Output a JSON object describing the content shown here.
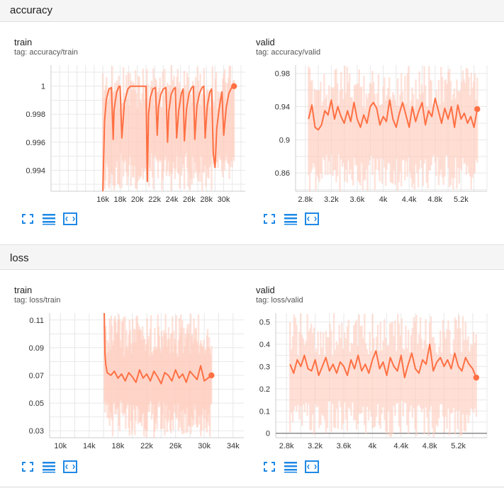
{
  "sections": [
    {
      "title": "accuracy",
      "cards": [
        {
          "title": "train",
          "tag": "tag: accuracy/train"
        },
        {
          "title": "valid",
          "tag": "tag: accuracy/valid"
        }
      ]
    },
    {
      "title": "loss",
      "cards": [
        {
          "title": "train",
          "tag": "tag: loss/train"
        },
        {
          "title": "valid",
          "tag": "tag: loss/valid"
        }
      ]
    }
  ],
  "toolbar_icons": [
    "fit-domain-icon",
    "data-selection-icon",
    "toggle-log-scale-icon"
  ],
  "colors": {
    "line": "#ff7043",
    "band": "#ffccbc",
    "accent_icon": "#1e88e5",
    "grid": "#e8e8e8"
  },
  "chart_data": [
    {
      "type": "line",
      "section": "accuracy",
      "panel": "train",
      "title": "",
      "xlim": [
        10000,
        32500
      ],
      "ylim": [
        0.9925,
        1.0015
      ],
      "xticks": [
        16000,
        18000,
        20000,
        22000,
        24000,
        26000,
        28000,
        30000
      ],
      "xtick_labels": [
        "16k",
        "18k",
        "20k",
        "22k",
        "24k",
        "26k",
        "28k",
        "30k"
      ],
      "yticks": [
        0.994,
        0.996,
        0.998,
        1
      ],
      "ytick_labels": [
        "0.994",
        "0.996",
        "0.998",
        "1"
      ],
      "series": [
        {
          "x": [
            16000,
            16200,
            16400,
            16700,
            17000,
            17200,
            17300,
            17600,
            17900,
            18000,
            18200,
            18500,
            18900,
            19200,
            20000,
            21000,
            21150,
            21300,
            21500,
            21800,
            22100,
            22300,
            22450,
            22700,
            23000,
            23300,
            23500,
            23650,
            23900,
            24200,
            24400,
            24550,
            24800,
            25100,
            25300,
            25450,
            25700,
            26000,
            26300,
            26500,
            26650,
            26900,
            27200,
            27500,
            27700,
            27850,
            28100,
            28400,
            28600,
            28800,
            29000,
            29200,
            29500,
            29800,
            30000,
            30300,
            30600,
            31000,
            31200
          ],
          "y": [
            0.9925,
            0.9975,
            0.999,
            0.9998,
            0.9999,
            0.9962,
            0.9983,
            0.9996,
            1.0,
            1.0,
            0.9963,
            0.9988,
            0.9998,
            1.0,
            1.0,
            1.0,
            0.9932,
            0.998,
            0.9992,
            0.9998,
            0.9999,
            0.9965,
            0.9985,
            0.9994,
            0.9998,
            0.9999,
            0.996,
            0.9982,
            0.9994,
            0.9998,
            0.9999,
            0.9963,
            0.9983,
            0.9995,
            0.9998,
            0.9961,
            0.9984,
            0.9995,
            0.9999,
            1.0,
            0.9962,
            0.9986,
            0.9995,
            0.9999,
            1.0,
            0.9963,
            0.9986,
            0.9996,
            0.9998,
            0.9952,
            0.9942,
            0.997,
            0.9985,
            0.9996,
            0.9965,
            0.9985,
            0.9995,
            1.0,
            1.0
          ]
        }
      ]
    },
    {
      "type": "line",
      "section": "accuracy",
      "panel": "valid",
      "title": "",
      "xlim": [
        2650,
        5600
      ],
      "ylim": [
        0.838,
        0.99
      ],
      "xticks": [
        2800,
        3200,
        3600,
        4000,
        4400,
        4800,
        5200
      ],
      "xtick_labels": [
        "2.8k",
        "3.2k",
        "3.6k",
        "4k",
        "4.4k",
        "4.8k",
        "5.2k"
      ],
      "yticks": [
        0.86,
        0.9,
        0.94,
        0.98
      ],
      "ytick_labels": [
        "0.86",
        "0.9",
        "0.94",
        "0.98"
      ],
      "series": [
        {
          "x": [
            2850,
            2900,
            2950,
            3000,
            3050,
            3100,
            3150,
            3200,
            3250,
            3300,
            3350,
            3400,
            3450,
            3500,
            3550,
            3600,
            3650,
            3700,
            3750,
            3800,
            3850,
            3900,
            3950,
            4000,
            4050,
            4100,
            4150,
            4200,
            4250,
            4300,
            4350,
            4400,
            4450,
            4500,
            4550,
            4600,
            4650,
            4700,
            4750,
            4800,
            4850,
            4900,
            4950,
            5000,
            5050,
            5100,
            5150,
            5200,
            5250,
            5300,
            5350,
            5400,
            5450
          ],
          "y": [
            0.925,
            0.942,
            0.915,
            0.912,
            0.918,
            0.935,
            0.93,
            0.948,
            0.925,
            0.94,
            0.928,
            0.92,
            0.935,
            0.922,
            0.945,
            0.925,
            0.915,
            0.93,
            0.92,
            0.94,
            0.945,
            0.938,
            0.918,
            0.928,
            0.922,
            0.948,
            0.925,
            0.915,
            0.932,
            0.945,
            0.93,
            0.915,
            0.94,
            0.922,
            0.935,
            0.945,
            0.918,
            0.935,
            0.928,
            0.95,
            0.935,
            0.92,
            0.938,
            0.925,
            0.94,
            0.915,
            0.942,
            0.925,
            0.932,
            0.92,
            0.928,
            0.915,
            0.937
          ]
        }
      ]
    },
    {
      "type": "line",
      "section": "loss",
      "panel": "train",
      "title": "",
      "xlim": [
        8500,
        35500
      ],
      "ylim": [
        0.025,
        0.115
      ],
      "xticks": [
        10000,
        14000,
        18000,
        22000,
        26000,
        30000,
        34000
      ],
      "xtick_labels": [
        "10k",
        "14k",
        "18k",
        "22k",
        "26k",
        "30k",
        "34k"
      ],
      "yticks": [
        0.03,
        0.05,
        0.07,
        0.09,
        0.11
      ],
      "ytick_labels": [
        "0.03",
        "0.05",
        "0.07",
        "0.09",
        "0.11"
      ],
      "series": [
        {
          "x": [
            16100,
            16200,
            16300,
            16500,
            17000,
            17500,
            18000,
            18500,
            19000,
            19500,
            20000,
            20500,
            21000,
            21500,
            22000,
            22500,
            23000,
            23500,
            24000,
            24500,
            25000,
            25500,
            26000,
            26500,
            27000,
            27500,
            28000,
            28500,
            29000,
            29500,
            30000,
            30500,
            31000
          ],
          "y": [
            0.115,
            0.085,
            0.078,
            0.072,
            0.07,
            0.073,
            0.068,
            0.071,
            0.066,
            0.072,
            0.069,
            0.065,
            0.074,
            0.068,
            0.071,
            0.066,
            0.073,
            0.069,
            0.064,
            0.072,
            0.07,
            0.066,
            0.074,
            0.068,
            0.071,
            0.065,
            0.073,
            0.07,
            0.067,
            0.077,
            0.066,
            0.068,
            0.07
          ]
        }
      ]
    },
    {
      "type": "line",
      "section": "loss",
      "panel": "valid",
      "title": "",
      "xlim": [
        2650,
        5600
      ],
      "ylim": [
        -0.02,
        0.54
      ],
      "xticks": [
        2800,
        3200,
        3600,
        4000,
        4400,
        4800,
        5200
      ],
      "xtick_labels": [
        "2.8k",
        "3.2k",
        "3.6k",
        "4k",
        "4.4k",
        "4.8k",
        "5.2k"
      ],
      "yticks": [
        0,
        0.1,
        0.2,
        0.3,
        0.4,
        0.5
      ],
      "ytick_labels": [
        "0",
        "0.1",
        "0.2",
        "0.3",
        "0.4",
        "0.5"
      ],
      "series": [
        {
          "x": [
            2850,
            2900,
            2950,
            3000,
            3050,
            3100,
            3150,
            3200,
            3250,
            3300,
            3350,
            3400,
            3450,
            3500,
            3550,
            3600,
            3650,
            3700,
            3750,
            3800,
            3850,
            3900,
            3950,
            4000,
            4050,
            4100,
            4150,
            4200,
            4250,
            4300,
            4350,
            4400,
            4450,
            4500,
            4550,
            4600,
            4650,
            4700,
            4750,
            4800,
            4850,
            4900,
            4950,
            5000,
            5050,
            5100,
            5150,
            5200,
            5250,
            5300,
            5350,
            5400,
            5450
          ],
          "y": [
            0.31,
            0.27,
            0.33,
            0.3,
            0.35,
            0.29,
            0.28,
            0.33,
            0.26,
            0.3,
            0.34,
            0.28,
            0.31,
            0.27,
            0.32,
            0.3,
            0.26,
            0.33,
            0.29,
            0.35,
            0.28,
            0.31,
            0.27,
            0.33,
            0.37,
            0.29,
            0.32,
            0.26,
            0.34,
            0.3,
            0.28,
            0.35,
            0.25,
            0.31,
            0.36,
            0.29,
            0.27,
            0.33,
            0.31,
            0.4,
            0.28,
            0.32,
            0.34,
            0.3,
            0.33,
            0.29,
            0.36,
            0.3,
            0.28,
            0.34,
            0.31,
            0.29,
            0.25
          ]
        }
      ]
    }
  ]
}
